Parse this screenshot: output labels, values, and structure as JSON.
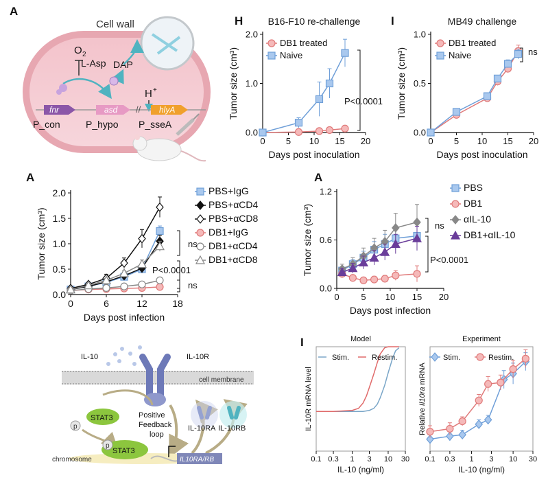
{
  "panels": {
    "top_left": {
      "letter": "A",
      "cell_wall": "Cell wall",
      "o2": "O",
      "o2_sub": "2",
      "l_asp": "L-Asp",
      "dap": "DAP",
      "h_plus": "H",
      "h_plus_sup": "+",
      "gene_fnr": "fnr",
      "gene_asd": "asd",
      "gene_hlya": "hlyA",
      "prom_con": "P_con",
      "prom_hypo": "P_hypo",
      "prom_ssea": "P_sseA"
    },
    "bottom_left": {
      "il10": "IL-10",
      "il10r": "IL-10R",
      "membrane": "cell membrane",
      "stat3_a": "STAT3",
      "stat3_b": "STAT3",
      "p1": "p",
      "p2": "p",
      "positive": "Positive",
      "feedback": "Feedback",
      "loop": "loop",
      "il10ra": "IL-10RA",
      "il10rb": "IL-10RB",
      "chromosome": "chromosome",
      "gene": "IL10RA/RB"
    }
  },
  "colors": {
    "blue": "#6f9fd8",
    "blue_fill": "#a9c8ee",
    "pink": "#e07a7a",
    "pink_fill": "#f5b9b9",
    "black": "#111111",
    "gray": "#888888",
    "purple": "#6a3d9a",
    "model_blue": "#7aa6c8",
    "model_red": "#e06a6a"
  },
  "chart_data": [
    {
      "id": "H",
      "letter": "H",
      "type": "line",
      "title": "B16-F10 re-challenge",
      "xlabel": "Days post inoculation",
      "ylabel": "Tumor size (cm³)",
      "xlim": [
        0,
        20
      ],
      "ylim": [
        0,
        2.0
      ],
      "xticks": [
        0,
        5,
        10,
        15,
        20
      ],
      "xtick_labels": [
        "0",
        "5",
        "10",
        "15",
        "20"
      ],
      "yticks": [
        0,
        1.0,
        2.0
      ],
      "ytick_labels": [
        "0.0",
        "1.0",
        "2.0"
      ],
      "legend": [
        "DB1 treated",
        "Naive"
      ],
      "annotations": [
        {
          "text": "P<0.0001"
        }
      ],
      "series": [
        {
          "name": "DB1 treated",
          "marker": "circle",
          "color": "pink",
          "x": [
            0,
            7,
            11,
            13,
            16
          ],
          "y": [
            0,
            0.01,
            0.03,
            0.05,
            0.08
          ],
          "err": [
            0,
            0.02,
            0.02,
            0.03,
            0.06
          ]
        },
        {
          "name": "Naive",
          "marker": "square",
          "color": "blue",
          "x": [
            0,
            7,
            11,
            13,
            16
          ],
          "y": [
            0,
            0.2,
            0.68,
            1.0,
            1.62
          ],
          "err": [
            0,
            0.1,
            0.35,
            0.3,
            0.28
          ]
        }
      ]
    },
    {
      "id": "I1",
      "letter": "I",
      "type": "line",
      "title": "MB49 challenge",
      "xlabel": "Days post inoculation",
      "ylabel": "Tumor size (cm³)",
      "xlim": [
        0,
        20
      ],
      "ylim": [
        0,
        1.0
      ],
      "xticks": [
        0,
        5,
        10,
        15,
        20
      ],
      "xtick_labels": [
        "0",
        "5",
        "10",
        "15",
        "20"
      ],
      "yticks": [
        0,
        0.5,
        1.0
      ],
      "ytick_labels": [
        "0.0",
        "0.5",
        "1.0"
      ],
      "legend": [
        "DB1 treated",
        "Naive"
      ],
      "annotations": [
        {
          "text": "ns"
        }
      ],
      "series": [
        {
          "name": "DB1 treated",
          "marker": "circle",
          "color": "pink",
          "x": [
            0,
            5,
            11,
            13,
            15,
            17
          ],
          "y": [
            0,
            0.18,
            0.35,
            0.52,
            0.65,
            0.83
          ],
          "err": [
            0,
            0.01,
            0.02,
            0.04,
            0.04,
            0.06
          ]
        },
        {
          "name": "Naive",
          "marker": "square",
          "color": "blue",
          "x": [
            0,
            5,
            11,
            13,
            15,
            17
          ],
          "y": [
            0,
            0.21,
            0.37,
            0.55,
            0.7,
            0.8
          ],
          "err": [
            0,
            0.01,
            0.02,
            0.03,
            0.04,
            0.05
          ]
        }
      ]
    },
    {
      "id": "A2",
      "letter": "A",
      "type": "line",
      "title": "",
      "xlabel": "Days post infection",
      "ylabel": "Tumor size (cm³)",
      "xlim": [
        0,
        18
      ],
      "ylim": [
        0,
        2.0
      ],
      "xticks": [
        0,
        6,
        12,
        18
      ],
      "xtick_labels": [
        "0",
        "6",
        "12",
        "18"
      ],
      "yticks": [
        0,
        0.5,
        1.0,
        1.5,
        2.0
      ],
      "ytick_labels": [
        "0.0",
        "0.5",
        "1.0",
        "1.5",
        "2.0"
      ],
      "legend": [
        "PBS+IgG",
        "PBS+αCD4",
        "PBS+αCD8",
        "DB1+IgG",
        "DB1+αCD4",
        "DB1+αCD8"
      ],
      "annotations": [
        {
          "text": "ns"
        },
        {
          "text": "P<0.0001"
        },
        {
          "text": "ns"
        }
      ],
      "series": [
        {
          "name": "PBS+IgG",
          "marker": "square",
          "color": "blue",
          "x": [
            0,
            3,
            6,
            9,
            12,
            15
          ],
          "y": [
            0.1,
            0.16,
            0.24,
            0.35,
            0.5,
            1.25
          ],
          "err": [
            0,
            0.02,
            0.04,
            0.05,
            0.08,
            0.1
          ]
        },
        {
          "name": "PBS+αCD4",
          "marker": "diamond",
          "color": "black",
          "x": [
            0,
            3,
            6,
            9,
            12,
            15
          ],
          "y": [
            0.1,
            0.16,
            0.25,
            0.37,
            0.52,
            1.05
          ],
          "err": [
            0,
            0.02,
            0.04,
            0.05,
            0.08,
            0.12
          ]
        },
        {
          "name": "PBS+αCD8",
          "marker": "diamond_open",
          "color": "black",
          "x": [
            0,
            3,
            6,
            9,
            12,
            15
          ],
          "y": [
            0.12,
            0.2,
            0.32,
            0.62,
            1.1,
            1.72
          ],
          "err": [
            0,
            0.03,
            0.08,
            0.1,
            0.18,
            0.2
          ]
        },
        {
          "name": "DB1+IgG",
          "marker": "circle",
          "color": "pink",
          "x": [
            0,
            3,
            6,
            9,
            12,
            15
          ],
          "y": [
            0.08,
            0.1,
            0.11,
            0.12,
            0.13,
            0.15
          ],
          "err": [
            0,
            0.01,
            0.01,
            0.01,
            0.02,
            0.02
          ]
        },
        {
          "name": "DB1+αCD4",
          "marker": "circle_open",
          "color": "gray",
          "x": [
            0,
            3,
            6,
            9,
            12,
            15
          ],
          "y": [
            0.08,
            0.11,
            0.13,
            0.16,
            0.2,
            0.28
          ],
          "err": [
            0,
            0.01,
            0.02,
            0.03,
            0.04,
            0.05
          ]
        },
        {
          "name": "DB1+αCD8",
          "marker": "triangle_open",
          "color": "gray",
          "x": [
            0,
            3,
            6,
            9,
            12,
            15
          ],
          "y": [
            0.1,
            0.18,
            0.28,
            0.42,
            0.6,
            0.95
          ],
          "err": [
            0,
            0.02,
            0.04,
            0.05,
            0.08,
            0.1
          ]
        }
      ]
    },
    {
      "id": "A3",
      "letter": "A",
      "type": "line",
      "title": "",
      "xlabel": "Days post infection",
      "ylabel": "Tumor size (cm³)",
      "xlim": [
        0,
        20
      ],
      "ylim": [
        0,
        1.2
      ],
      "xticks": [
        0,
        5,
        10,
        15,
        20
      ],
      "xtick_labels": [
        "0",
        "5",
        "10",
        "15",
        "20"
      ],
      "yticks": [
        0,
        0.6,
        1.2
      ],
      "ytick_labels": [
        "0.0",
        "0.6",
        "1.2"
      ],
      "legend": [
        "PBS",
        "DB1",
        "αIL-10",
        "DB1+αIL-10"
      ],
      "annotations": [
        {
          "text": "ns"
        },
        {
          "text": "P<0.0001"
        }
      ],
      "series": [
        {
          "name": "PBS",
          "marker": "square",
          "color": "blue",
          "x": [
            1,
            3,
            5,
            7,
            9,
            11,
            15
          ],
          "y": [
            0.22,
            0.3,
            0.38,
            0.48,
            0.55,
            0.62,
            0.65
          ],
          "err": [
            0.05,
            0.06,
            0.08,
            0.1,
            0.12,
            0.14,
            0.18
          ]
        },
        {
          "name": "DB1",
          "marker": "circle",
          "color": "pink",
          "x": [
            1,
            3,
            5,
            7,
            9,
            11,
            15
          ],
          "y": [
            0.18,
            0.13,
            0.1,
            0.11,
            0.12,
            0.16,
            0.18
          ],
          "err": [
            0.05,
            0.03,
            0.03,
            0.04,
            0.04,
            0.06,
            0.1
          ]
        },
        {
          "name": "αIL-10",
          "marker": "diamond",
          "color": "gray",
          "x": [
            1,
            3,
            5,
            7,
            9,
            11,
            15
          ],
          "y": [
            0.24,
            0.3,
            0.4,
            0.5,
            0.58,
            0.75,
            0.82
          ],
          "err": [
            0.06,
            0.08,
            0.1,
            0.12,
            0.14,
            0.18,
            0.22
          ]
        },
        {
          "name": "DB1+αIL-10",
          "marker": "triangle",
          "color": "purple",
          "x": [
            1,
            3,
            5,
            7,
            9,
            11,
            15
          ],
          "y": [
            0.2,
            0.25,
            0.32,
            0.38,
            0.45,
            0.55,
            0.62
          ],
          "err": [
            0.05,
            0.06,
            0.08,
            0.09,
            0.1,
            0.12,
            0.15
          ]
        }
      ]
    },
    {
      "id": "I2",
      "letter": "I",
      "type": "line",
      "title": "Model",
      "xlabel": "IL-10 (ng/ml)",
      "ylabel": "IL-10R mRNA level",
      "xscale": "log",
      "xlim": [
        0.1,
        30
      ],
      "xticks": [
        0.1,
        0.3,
        1,
        3,
        10,
        30
      ],
      "xtick_labels": [
        "0.1",
        "0.3",
        "1",
        "3",
        "10",
        "30"
      ],
      "ylim": [
        0,
        1
      ],
      "legend": [
        "Stim.",
        "Restim."
      ],
      "series": [
        {
          "name": "Stim.",
          "color": "model_blue",
          "x": [
            0.1,
            0.3,
            1,
            2,
            3,
            4,
            5,
            6,
            8,
            10,
            13,
            16,
            20
          ],
          "y": [
            0.38,
            0.38,
            0.38,
            0.38,
            0.39,
            0.41,
            0.45,
            0.51,
            0.63,
            0.75,
            0.88,
            0.96,
            0.99
          ]
        },
        {
          "name": "Restim.",
          "color": "model_red",
          "x": [
            0.1,
            0.3,
            1,
            1.5,
            2,
            2.5,
            3,
            4,
            5,
            6,
            8,
            10,
            20
          ],
          "y": [
            0.38,
            0.38,
            0.39,
            0.41,
            0.46,
            0.53,
            0.61,
            0.74,
            0.85,
            0.93,
            0.99,
            1.0,
            1.0
          ]
        }
      ]
    },
    {
      "id": "I3",
      "letter": "",
      "type": "line",
      "title": "Experiment",
      "xlabel": "IL-10 (ng/ml)",
      "ylabel": "Relative Il10ra mRNA",
      "ylabel_plain": "Relative",
      "ylabel_italic": "Il10ra",
      "ylabel_end": "mRNA",
      "xscale": "log",
      "xlim": [
        0.1,
        30
      ],
      "xticks": [
        0.1,
        0.3,
        1,
        3,
        10,
        30
      ],
      "xtick_labels": [
        "0.1",
        "0.3",
        "1",
        "3",
        "10",
        "30"
      ],
      "ylim": [
        0,
        7
      ],
      "legend": [
        "Stim.",
        "Restim."
      ],
      "series": [
        {
          "name": "Stim.",
          "marker": "diamond",
          "color": "blue",
          "x": [
            0.1,
            0.3,
            0.6,
            1.5,
            2.5,
            6,
            10,
            20
          ],
          "y": [
            0.8,
            1.0,
            1.1,
            1.8,
            2.1,
            4.8,
            5.2,
            6.0
          ],
          "err": [
            0.3,
            0.3,
            0.3,
            0.3,
            0.3,
            0.6,
            0.7,
            0.6
          ]
        },
        {
          "name": "Restim.",
          "marker": "circle",
          "color": "pink",
          "x": [
            0.1,
            0.3,
            0.6,
            1.5,
            2.5,
            5,
            10,
            20
          ],
          "y": [
            1.3,
            1.5,
            2.0,
            3.4,
            4.5,
            4.6,
            5.5,
            6.2
          ],
          "err": [
            0.4,
            0.4,
            0.3,
            0.4,
            0.5,
            0.5,
            0.6,
            0.6
          ]
        }
      ]
    }
  ]
}
